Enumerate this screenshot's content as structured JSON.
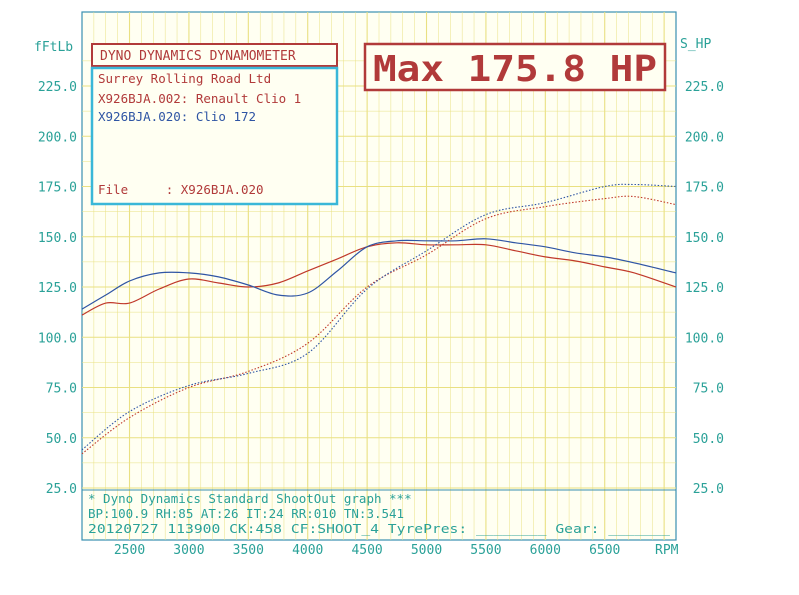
{
  "chart_data": {
    "type": "line",
    "left_axis_label": "fFtLb",
    "right_axis_label": "S_HP",
    "x_unit": "RPM",
    "xlim": [
      2100,
      7100
    ],
    "ylim": [
      25,
      225
    ],
    "grid": true,
    "x_ticks": [
      2500,
      3000,
      3500,
      4000,
      4500,
      5000,
      5500,
      6000,
      6500
    ],
    "x_tick_labels": [
      "2500",
      "3000",
      "3500",
      "4000",
      "4500",
      "5000",
      "5500",
      "6000",
      "6500"
    ],
    "y_ticks": [
      25,
      50,
      75,
      100,
      125,
      150,
      175,
      200,
      225
    ],
    "y_tick_labels": [
      "25.0",
      "50.0",
      "75.0",
      "100.0",
      "125.0",
      "150.0",
      "175.0",
      "200.0",
      "225.0"
    ],
    "series": [
      {
        "color": "#c0392b",
        "style": "solid",
        "x": [
          2100,
          2300,
          2500,
          2750,
          3000,
          3250,
          3500,
          3750,
          4000,
          4250,
          4500,
          4750,
          5000,
          5250,
          5500,
          5750,
          6000,
          6250,
          6500,
          6750,
          7100
        ],
        "values": [
          111,
          117,
          117,
          124,
          129,
          127,
          125,
          127,
          133,
          139,
          145,
          147,
          146,
          146,
          146,
          143,
          140,
          138,
          135,
          132,
          125
        ]
      },
      {
        "color": "#2f55a4",
        "style": "solid",
        "x": [
          2100,
          2300,
          2500,
          2750,
          3000,
          3250,
          3500,
          3750,
          4000,
          4250,
          4500,
          4750,
          5000,
          5250,
          5500,
          5750,
          6000,
          6250,
          6500,
          6750,
          7100
        ],
        "values": [
          114,
          121,
          128,
          132,
          132,
          130,
          126,
          121,
          122,
          133,
          145,
          148,
          148,
          148,
          149,
          147,
          145,
          142,
          140,
          137,
          132
        ]
      },
      {
        "color": "#c0392b",
        "style": "dotted",
        "x": [
          2100,
          2500,
          3000,
          3500,
          4000,
          4500,
          5000,
          5500,
          6000,
          6500,
          6750,
          7100
        ],
        "values": [
          42,
          60,
          75,
          83,
          97,
          125,
          141,
          159,
          165,
          169,
          170,
          166
        ]
      },
      {
        "color": "#2f55a4",
        "style": "dotted",
        "x": [
          2100,
          2500,
          3000,
          3500,
          4000,
          4500,
          5000,
          5500,
          6000,
          6500,
          6750,
          7100
        ],
        "values": [
          44,
          63,
          76,
          82,
          92,
          124,
          143,
          161,
          167,
          175,
          176,
          175
        ]
      }
    ]
  },
  "title_box": {
    "label": "DYNO DYNAMICS DYNAMOMETER"
  },
  "max_box": {
    "label": "Max 175.8 HP"
  },
  "info_box": {
    "line1": "Surrey Rolling Road Ltd",
    "line2": "X926BJA.002: Renault Clio 1",
    "line3": "X926BJA.020: Clio 172",
    "file_line": "File     : X926BJA.020"
  },
  "footer": {
    "line1": "* Dyno Dynamics Standard ShootOut graph ***",
    "line2": "BP:100.9 RH:85 AT:26 IT:24  RR:010 TN:3.541",
    "line3": "20120727 113900 CK:458 CF:SHOOT_4  TyrePres: ________ Gear: _______"
  },
  "colors": {
    "grid": "#e9e082",
    "frame": "#3a8fb0",
    "axis_text": "#2aa198",
    "red": "#b13a3a",
    "blue": "#2f55a4",
    "plot_bg": "#fffff2"
  }
}
